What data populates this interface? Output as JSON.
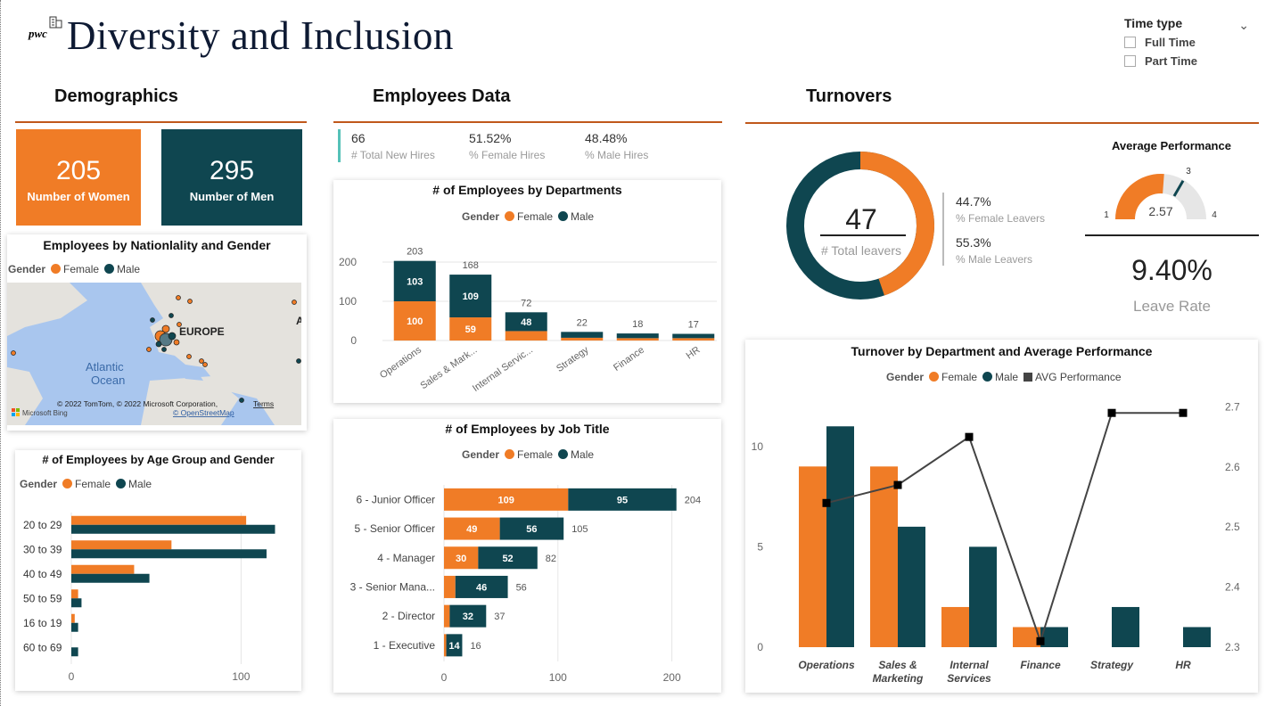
{
  "header": {
    "logo_text": "pwc",
    "title": "Diversity and Inclusion"
  },
  "filter": {
    "title": "Time type",
    "options": [
      "Full Time",
      "Part Time"
    ]
  },
  "colors": {
    "female": "#f07c26",
    "male": "#0f4650",
    "accent_rule": "#c0581b",
    "avg_performance": "#333333"
  },
  "sections": {
    "demographics": "Demographics",
    "employees": "Employees Data",
    "turnovers": "Turnovers"
  },
  "kpis": {
    "women": {
      "value": "205",
      "label": "Number of Women"
    },
    "men": {
      "value": "295",
      "label": "Number of Men"
    }
  },
  "hires": [
    {
      "value": "66",
      "label": "# Total New Hires"
    },
    {
      "value": "51.52%",
      "label": "% Female Hires"
    },
    {
      "value": "48.48%",
      "label": "% Male Hires"
    }
  ],
  "map": {
    "title": "Employees by Nationlality and Gender",
    "legend_title": "Gender",
    "legend": [
      "Female",
      "Male"
    ],
    "region_label": "EUROPE",
    "ocean_label_1": "Atlantic",
    "ocean_label_2": "Ocean",
    "attribution": "© 2022 TomTom, © 2022 Microsoft Corporation,",
    "terms": "Terms",
    "osm": "© OpenStreetMap",
    "bing": "Microsoft Bing",
    "side_letter": "A"
  },
  "turnover_summary": {
    "total": "47",
    "total_label": "# Total leavers",
    "female_pct": "44.7%",
    "female_label": "% Female Leavers",
    "male_pct": "55.3%",
    "male_label": "% Male Leavers",
    "female_share": 0.447
  },
  "performance": {
    "title": "Average Performance",
    "value": "2.57",
    "min": "1",
    "max": "4",
    "target": "3",
    "value_num": 2.57,
    "min_num": 1,
    "max_num": 4,
    "target_num": 3
  },
  "leave_rate": {
    "value": "9.40%",
    "label": "Leave Rate"
  },
  "chart_data": [
    {
      "id": "departments",
      "type": "bar",
      "title": "# of Employees by Departments",
      "legend_title": "Gender",
      "categories": [
        "Operations",
        "Sales & Mark...",
        "Internal Servic...",
        "Strategy",
        "Finance",
        "HR"
      ],
      "series": [
        {
          "name": "Female",
          "values": [
            100,
            59,
            24,
            7,
            6,
            6
          ]
        },
        {
          "name": "Male",
          "values": [
            103,
            109,
            48,
            15,
            12,
            11
          ]
        }
      ],
      "totals": [
        203,
        168,
        72,
        22,
        18,
        17
      ],
      "segment_labels": {
        "Female": [
          "100",
          "59",
          "",
          "",
          "",
          ""
        ],
        "Male": [
          "103",
          "109",
          "48",
          "",
          "",
          ""
        ]
      },
      "yticks": [
        0,
        100,
        200
      ],
      "ylim": [
        0,
        200
      ]
    },
    {
      "id": "age",
      "type": "bar",
      "title": "# of Employees by Age Group and Gender",
      "legend_title": "Gender",
      "categories": [
        "20 to 29",
        "30 to 39",
        "40 to 49",
        "50 to 59",
        "16 to 19",
        "60 to 69"
      ],
      "series": [
        {
          "name": "Female",
          "values": [
            103,
            59,
            37,
            4,
            2,
            0
          ]
        },
        {
          "name": "Male",
          "values": [
            120,
            115,
            46,
            6,
            4,
            4
          ]
        }
      ],
      "xticks": [
        0,
        100
      ],
      "xlim": [
        0,
        125
      ]
    },
    {
      "id": "jobtitle",
      "type": "bar",
      "title": "# of Employees by Job Title",
      "legend_title": "Gender",
      "categories": [
        "6 - Junior Officer",
        "5 - Senior Officer",
        "4 - Manager",
        "3 - Senior Mana...",
        "2 - Director",
        "1 - Executive"
      ],
      "series": [
        {
          "name": "Female",
          "values": [
            109,
            49,
            30,
            10,
            5,
            2
          ]
        },
        {
          "name": "Male",
          "values": [
            95,
            56,
            52,
            46,
            32,
            14
          ]
        }
      ],
      "totals": [
        204,
        105,
        82,
        56,
        37,
        16
      ],
      "segment_labels": {
        "Female": [
          "109",
          "49",
          "30",
          "",
          "",
          ""
        ],
        "Male": [
          "95",
          "56",
          "52",
          "46",
          "32",
          "14"
        ]
      },
      "xticks": [
        0,
        100,
        200
      ],
      "xlim": [
        0,
        205
      ]
    },
    {
      "id": "turnover",
      "type": "bar",
      "title": "Turnover by Department and Average Performance",
      "legend_title": "Gender",
      "categories": [
        "Operations",
        "Sales &\nMarketing",
        "Internal\nServices",
        "Finance",
        "Strategy",
        "HR"
      ],
      "series": [
        {
          "name": "Female",
          "values": [
            9,
            9,
            2,
            1,
            0,
            0
          ]
        },
        {
          "name": "Male",
          "values": [
            11,
            6,
            5,
            1,
            2,
            1
          ]
        },
        {
          "name": "AVG Performance",
          "type": "line",
          "axis": "right",
          "values": [
            2.54,
            2.57,
            2.65,
            2.31,
            2.69,
            2.69
          ]
        }
      ],
      "yticks": [
        0,
        5,
        10
      ],
      "ylim": [
        0,
        11.5
      ],
      "y2ticks": [
        2.3,
        2.4,
        2.5,
        2.6,
        2.7
      ],
      "y2lim": [
        2.3,
        2.72
      ]
    }
  ]
}
